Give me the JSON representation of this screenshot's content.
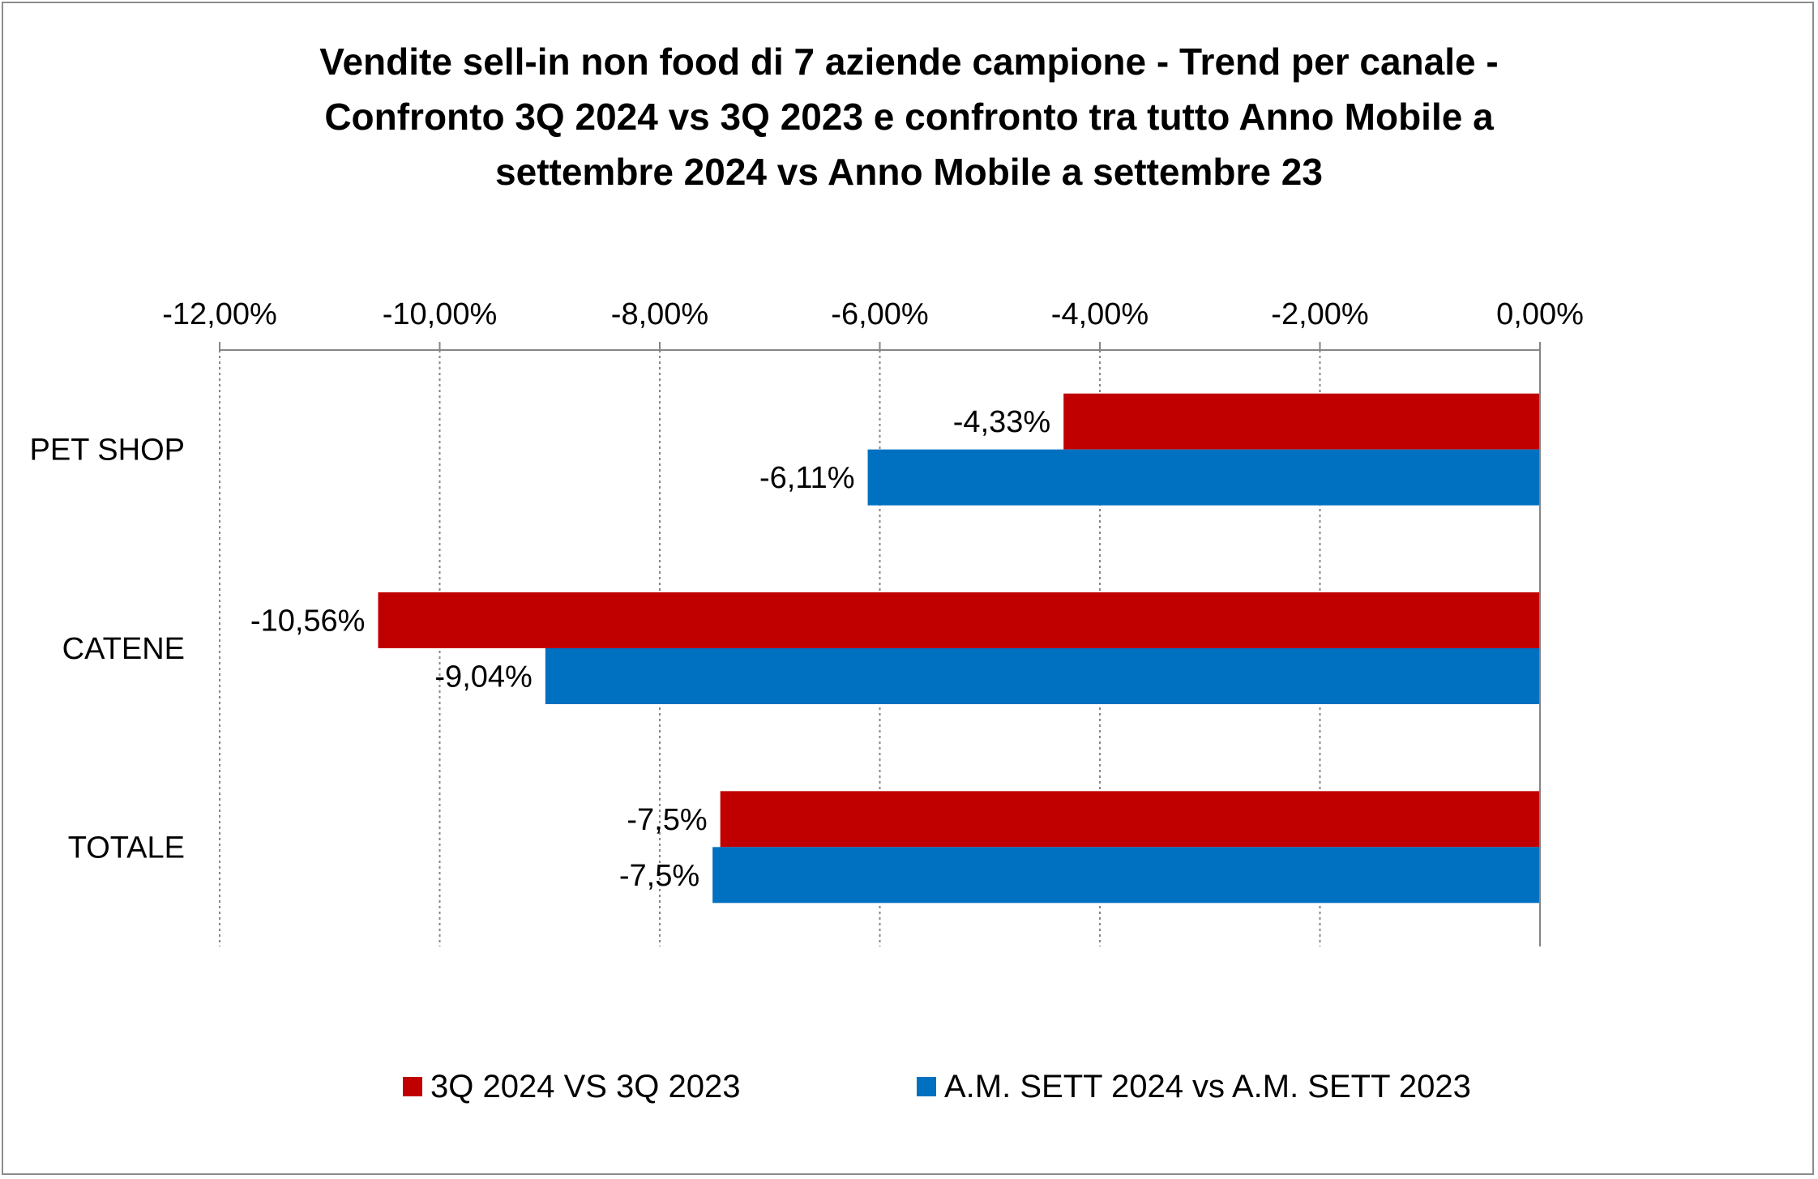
{
  "chart_data": {
    "type": "bar",
    "orientation": "horizontal",
    "title_lines": [
      "Vendite sell-in non food di 7 aziende campione - Trend per canale -",
      "Confronto 3Q 2024 vs 3Q 2023 e confronto tra tutto Anno Mobile a",
      "settembre 2024 vs Anno Mobile a settembre 23"
    ],
    "categories": [
      "PET SHOP",
      "CATENE",
      "TOTALE"
    ],
    "series": [
      {
        "name": "3Q 2024 VS 3Q 2023",
        "color": "#C00000",
        "values": [
          -4.33,
          -10.56,
          -7.45
        ],
        "labels": [
          "-4,33%",
          "-10,56%",
          "-7,5%"
        ]
      },
      {
        "name": "A.M. SETT 2024 vs A.M. SETT 2023",
        "color": "#0070C0",
        "values": [
          -6.11,
          -9.04,
          -7.52
        ],
        "labels": [
          "-6,11%",
          "-9,04%",
          "-7,5%"
        ]
      }
    ],
    "xlim": [
      -12,
      0
    ],
    "xticks": [
      -12,
      -10,
      -8,
      -6,
      -4,
      -2,
      0
    ],
    "xtick_labels": [
      "-12,00%",
      "-10,00%",
      "-8,00%",
      "-6,00%",
      "-4,00%",
      "-2,00%",
      "0,00%"
    ],
    "axis_position": "top",
    "grid": true,
    "legend_position": "bottom"
  }
}
